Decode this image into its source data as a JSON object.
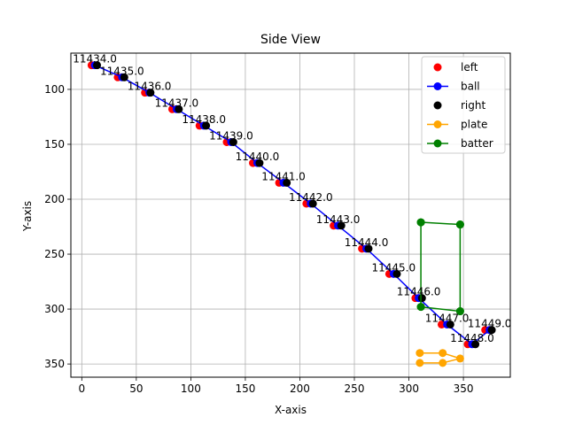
{
  "chart_data": {
    "type": "scatter",
    "title": "Side View",
    "xlabel": "X-axis",
    "ylabel": "Y-axis",
    "xlim": [
      -10,
      393
    ],
    "ylim": [
      362,
      67
    ],
    "y_inverted": true,
    "grid": true,
    "legend_position": "top-right",
    "x_ticks": [
      0,
      50,
      100,
      150,
      200,
      250,
      300,
      350
    ],
    "y_ticks": [
      100,
      150,
      200,
      250,
      300,
      350
    ],
    "series": [
      {
        "name": "left",
        "kind": "scatter",
        "color": "#ff0000",
        "points": [
          [
            9,
            78
          ],
          [
            33,
            89
          ],
          [
            58,
            103
          ],
          [
            83,
            118
          ],
          [
            108,
            133
          ],
          [
            133,
            148
          ],
          [
            157,
            167
          ],
          [
            181,
            185
          ],
          [
            206,
            204
          ],
          [
            231,
            224
          ],
          [
            257,
            245
          ],
          [
            282,
            268
          ],
          [
            306,
            290
          ],
          [
            330,
            314
          ],
          [
            354,
            332
          ],
          [
            370,
            319
          ]
        ]
      },
      {
        "name": "ball",
        "kind": "line",
        "color": "#0000ff",
        "segments": [
          [
            [
              12,
              78
            ],
            [
              37,
              89
            ],
            [
              62,
              103
            ],
            [
              87,
              118
            ],
            [
              112,
              133
            ],
            [
              137,
              148
            ],
            [
              161,
              167
            ],
            [
              185,
              185
            ],
            [
              210,
              204
            ],
            [
              235,
              224
            ],
            [
              261,
              245
            ],
            [
              286,
              268
            ],
            [
              309,
              290
            ],
            [
              335,
              314
            ],
            [
              358,
              332
            ],
            [
              374,
              319
            ]
          ]
        ]
      },
      {
        "name": "right",
        "kind": "scatter",
        "color": "#000000",
        "points": [
          [
            14,
            78
          ],
          [
            39,
            89
          ],
          [
            63,
            103
          ],
          [
            89,
            118
          ],
          [
            114,
            133
          ],
          [
            139,
            148
          ],
          [
            163,
            167
          ],
          [
            188,
            185
          ],
          [
            212,
            204
          ],
          [
            238,
            224
          ],
          [
            263,
            245
          ],
          [
            289,
            268
          ],
          [
            312,
            290
          ],
          [
            338,
            314
          ],
          [
            361,
            332
          ],
          [
            376,
            319
          ]
        ]
      },
      {
        "name": "plate",
        "kind": "line",
        "color": "#ffa500",
        "segments": [
          [
            [
              310,
              340
            ],
            [
              331,
              340
            ],
            [
              347,
              345
            ],
            [
              331,
              349
            ],
            [
              310,
              349
            ]
          ]
        ]
      },
      {
        "name": "batter",
        "kind": "line",
        "color": "#008000",
        "segments": [
          [
            [
              311,
              221
            ],
            [
              347,
              223
            ]
          ],
          [
            [
              311,
              221
            ],
            [
              311,
              298
            ]
          ],
          [
            [
              347,
              223
            ],
            [
              347,
              302
            ]
          ],
          [
            [
              311,
              298
            ],
            [
              347,
              302
            ]
          ]
        ]
      }
    ],
    "frame_labels": [
      {
        "text": "11434.0",
        "x": 12,
        "y": 78
      },
      {
        "text": "11435.0",
        "x": 37,
        "y": 89
      },
      {
        "text": "11436.0",
        "x": 62,
        "y": 103
      },
      {
        "text": "11437.0",
        "x": 87,
        "y": 118
      },
      {
        "text": "11438.0",
        "x": 112,
        "y": 133
      },
      {
        "text": "11439.0",
        "x": 137,
        "y": 148
      },
      {
        "text": "11440.0",
        "x": 161,
        "y": 167
      },
      {
        "text": "11441.0",
        "x": 185,
        "y": 185
      },
      {
        "text": "11442.0",
        "x": 210,
        "y": 204
      },
      {
        "text": "11443.0",
        "x": 235,
        "y": 224
      },
      {
        "text": "11444.0",
        "x": 261,
        "y": 245
      },
      {
        "text": "11445.0",
        "x": 286,
        "y": 268
      },
      {
        "text": "11446.0",
        "x": 309,
        "y": 290
      },
      {
        "text": "11447.0",
        "x": 335,
        "y": 314
      },
      {
        "text": "11448.0",
        "x": 358,
        "y": 332
      },
      {
        "text": "11449.0",
        "x": 374,
        "y": 319
      }
    ]
  }
}
